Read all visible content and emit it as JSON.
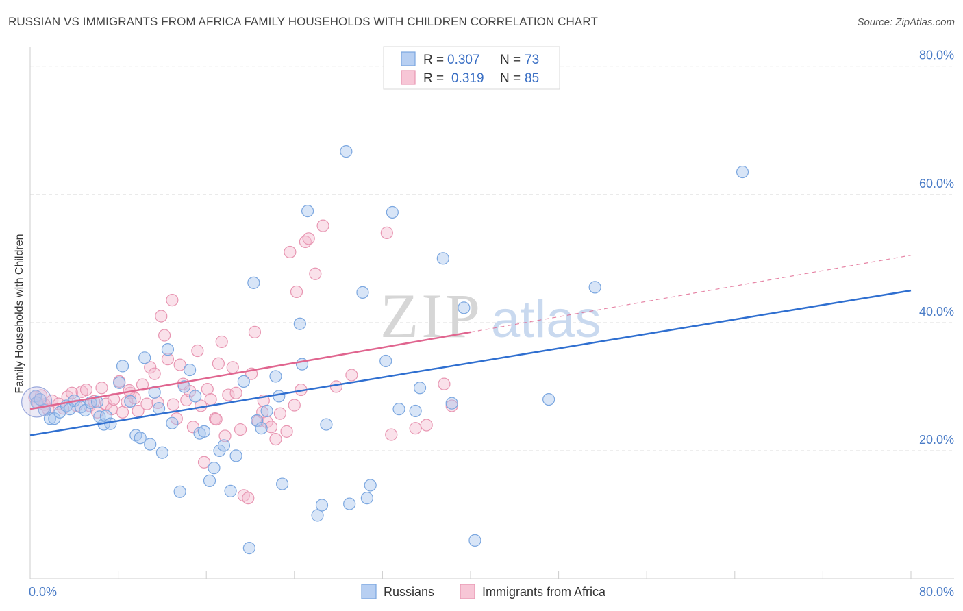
{
  "header": {
    "title": "RUSSIAN VS IMMIGRANTS FROM AFRICA FAMILY HOUSEHOLDS WITH CHILDREN CORRELATION CHART",
    "source": "Source: ZipAtlas.com"
  },
  "watermark": {
    "zip": "ZIP",
    "atlas": "atlas"
  },
  "chart_data": {
    "type": "scatter",
    "title": "RUSSIAN VS IMMIGRANTS FROM AFRICA FAMILY HOUSEHOLDS WITH CHILDREN CORRELATION CHART",
    "xlabel": "",
    "ylabel": "Family Households with Children",
    "xlim": [
      0,
      80
    ],
    "ylim": [
      0,
      82
    ],
    "x_tick_labels": [
      "0.0%",
      "80.0%"
    ],
    "y_ticks": [
      {
        "value": 20,
        "label": "20.0%"
      },
      {
        "value": 40,
        "label": "40.0%"
      },
      {
        "value": 60,
        "label": "60.0%"
      },
      {
        "value": 80,
        "label": "80.0%"
      }
    ],
    "legend": {
      "rows": [
        {
          "r_label": "R =",
          "r_value": "0.307",
          "n_label": "N =",
          "n_value": "73"
        },
        {
          "r_label": "R =",
          "r_value": "0.319",
          "n_label": "N =",
          "n_value": "85"
        }
      ]
    },
    "series": [
      {
        "name": "Russians",
        "color": "#7ba7e0",
        "fill": "#a9c6ee",
        "line_color": "#2f6fd0",
        "trend": {
          "x0": 0,
          "y0": 22.4,
          "x1": 80,
          "y1": 45.0
        },
        "points": [
          [
            0.5,
            28.5
          ],
          [
            0.6,
            27.5
          ],
          [
            0.9,
            28.0
          ],
          [
            1.3,
            26.3
          ],
          [
            1.8,
            25.0
          ],
          [
            2.2,
            25.0
          ],
          [
            2.7,
            26.0
          ],
          [
            3.3,
            27.0
          ],
          [
            3.6,
            26.5
          ],
          [
            4.0,
            27.8
          ],
          [
            4.6,
            26.8
          ],
          [
            5.0,
            26.3
          ],
          [
            5.5,
            27.5
          ],
          [
            6.1,
            27.6
          ],
          [
            6.3,
            25.3
          ],
          [
            6.7,
            24.1
          ],
          [
            6.9,
            25.4
          ],
          [
            7.3,
            24.2
          ],
          [
            8.1,
            30.6
          ],
          [
            8.4,
            33.2
          ],
          [
            9.1,
            27.7
          ],
          [
            9.6,
            22.4
          ],
          [
            10.0,
            22.0
          ],
          [
            10.4,
            34.5
          ],
          [
            10.9,
            21.0
          ],
          [
            11.3,
            29.1
          ],
          [
            11.7,
            26.6
          ],
          [
            12.0,
            19.7
          ],
          [
            12.5,
            35.8
          ],
          [
            12.9,
            24.3
          ],
          [
            13.6,
            13.6
          ],
          [
            14.0,
            30.0
          ],
          [
            14.5,
            32.6
          ],
          [
            15.0,
            28.5
          ],
          [
            15.4,
            22.7
          ],
          [
            15.8,
            23.0
          ],
          [
            16.3,
            15.3
          ],
          [
            16.7,
            17.3
          ],
          [
            17.2,
            20.0
          ],
          [
            17.6,
            20.8
          ],
          [
            18.2,
            13.7
          ],
          [
            18.7,
            19.2
          ],
          [
            19.4,
            30.8
          ],
          [
            19.9,
            4.8
          ],
          [
            20.3,
            46.2
          ],
          [
            20.6,
            24.7
          ],
          [
            21.0,
            23.5
          ],
          [
            21.5,
            26.2
          ],
          [
            22.3,
            31.6
          ],
          [
            22.6,
            28.5
          ],
          [
            22.9,
            14.8
          ],
          [
            24.5,
            39.8
          ],
          [
            24.7,
            33.5
          ],
          [
            25.2,
            57.4
          ],
          [
            26.1,
            9.9
          ],
          [
            26.5,
            11.5
          ],
          [
            26.9,
            24.1
          ],
          [
            28.7,
            66.7
          ],
          [
            29.0,
            11.7
          ],
          [
            30.2,
            44.7
          ],
          [
            30.6,
            12.6
          ],
          [
            30.9,
            14.6
          ],
          [
            32.3,
            34.0
          ],
          [
            32.9,
            57.2
          ],
          [
            33.5,
            26.5
          ],
          [
            35.0,
            26.2
          ],
          [
            35.4,
            29.8
          ],
          [
            37.5,
            50.0
          ],
          [
            38.3,
            27.4
          ],
          [
            39.4,
            42.3
          ],
          [
            40.4,
            6.0
          ],
          [
            47.1,
            28.0
          ],
          [
            51.3,
            45.5
          ],
          [
            64.7,
            63.5
          ]
        ]
      },
      {
        "name": "Immigrants from Africa",
        "color": "#e896b2",
        "fill": "#f5bcd0",
        "line_color": "#e0658f",
        "trend": {
          "x0": 0,
          "y0": 26.5,
          "x1": 80,
          "y1": 50.5
        },
        "trend_solid_until_x": 40,
        "points": [
          [
            0.4,
            28.3
          ],
          [
            0.7,
            27.5
          ],
          [
            1.0,
            28.6
          ],
          [
            1.3,
            27.2
          ],
          [
            1.6,
            26.5
          ],
          [
            2.0,
            27.8
          ],
          [
            2.6,
            27.3
          ],
          [
            3.0,
            26.6
          ],
          [
            3.4,
            28.4
          ],
          [
            3.8,
            29.0
          ],
          [
            4.2,
            27.0
          ],
          [
            4.7,
            29.2
          ],
          [
            5.1,
            29.5
          ],
          [
            5.4,
            27.0
          ],
          [
            5.8,
            27.7
          ],
          [
            6.1,
            26.0
          ],
          [
            6.5,
            29.8
          ],
          [
            6.9,
            27.3
          ],
          [
            7.4,
            26.5
          ],
          [
            7.6,
            28.0
          ],
          [
            8.1,
            30.8
          ],
          [
            8.4,
            26.0
          ],
          [
            8.8,
            27.6
          ],
          [
            9.1,
            29.0
          ],
          [
            9.5,
            28.2
          ],
          [
            9.8,
            26.2
          ],
          [
            10.2,
            30.3
          ],
          [
            10.6,
            27.3
          ],
          [
            10.9,
            33.0
          ],
          [
            11.3,
            32.0
          ],
          [
            11.6,
            27.5
          ],
          [
            11.9,
            41.0
          ],
          [
            12.2,
            38.0
          ],
          [
            12.5,
            34.3
          ],
          [
            12.9,
            43.5
          ],
          [
            13.3,
            25.0
          ],
          [
            13.6,
            33.4
          ],
          [
            13.9,
            30.4
          ],
          [
            14.2,
            27.9
          ],
          [
            14.5,
            29.3
          ],
          [
            14.8,
            23.7
          ],
          [
            15.2,
            35.6
          ],
          [
            15.5,
            27.0
          ],
          [
            15.8,
            18.2
          ],
          [
            16.1,
            29.6
          ],
          [
            16.4,
            28.0
          ],
          [
            16.8,
            25.0
          ],
          [
            17.1,
            33.6
          ],
          [
            17.4,
            37.0
          ],
          [
            17.7,
            22.3
          ],
          [
            18.0,
            28.7
          ],
          [
            18.4,
            33.0
          ],
          [
            18.7,
            29.0
          ],
          [
            19.1,
            23.3
          ],
          [
            19.4,
            13.0
          ],
          [
            19.8,
            12.6
          ],
          [
            20.1,
            32.0
          ],
          [
            20.4,
            38.5
          ],
          [
            20.7,
            24.6
          ],
          [
            21.1,
            26.0
          ],
          [
            21.5,
            24.5
          ],
          [
            21.9,
            23.7
          ],
          [
            22.3,
            21.8
          ],
          [
            22.7,
            25.8
          ],
          [
            23.3,
            23.0
          ],
          [
            23.6,
            51.0
          ],
          [
            24.2,
            44.8
          ],
          [
            24.6,
            29.5
          ],
          [
            25.0,
            52.6
          ],
          [
            25.3,
            53.1
          ],
          [
            25.9,
            47.6
          ],
          [
            26.6,
            55.1
          ],
          [
            27.8,
            30.0
          ],
          [
            29.2,
            31.8
          ],
          [
            32.4,
            54.0
          ],
          [
            32.8,
            22.5
          ],
          [
            35.0,
            23.5
          ],
          [
            36.0,
            24.0
          ],
          [
            37.6,
            30.4
          ],
          [
            38.3,
            27.0
          ],
          [
            21.2,
            27.8
          ],
          [
            24.0,
            27.1
          ],
          [
            16.9,
            24.9
          ],
          [
            13.0,
            27.2
          ],
          [
            9.0,
            29.4
          ]
        ]
      }
    ]
  }
}
